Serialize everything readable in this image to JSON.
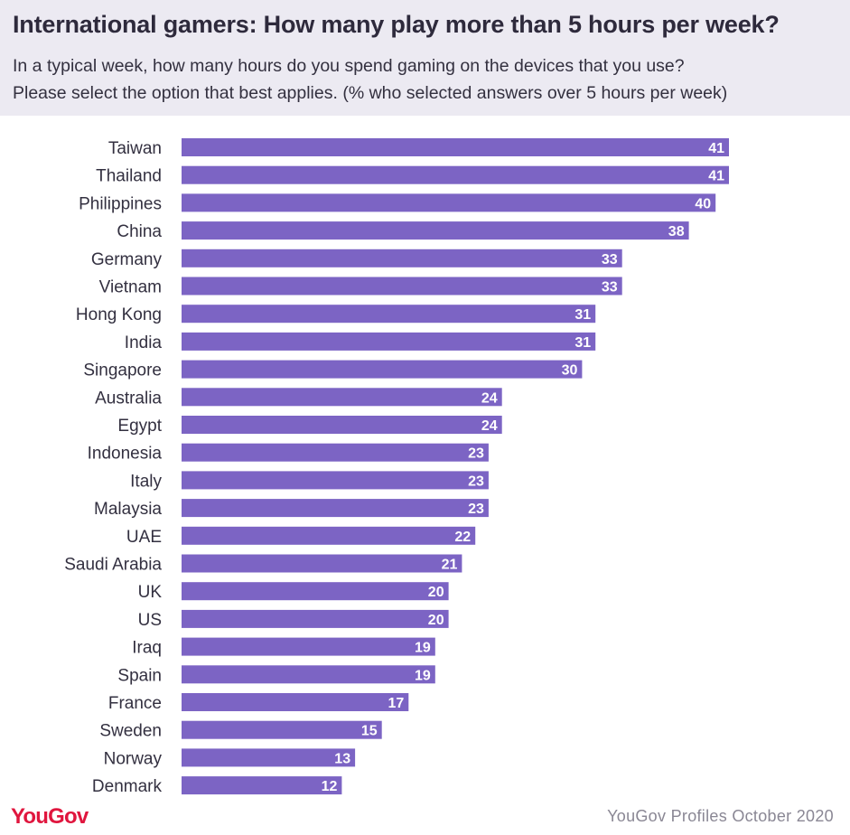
{
  "header": {
    "title": "International gamers: How many play more than 5 hours per week?",
    "subtitle_line1": "In a typical week, how many hours do you spend gaming on the devices that you use?",
    "subtitle_line2": "Please select the option that best applies. (% who selected answers over 5 hours per week)"
  },
  "footer": {
    "logo": "YouGov",
    "source": "YouGov Profiles October 2020"
  },
  "colors": {
    "bar": "#7C64C4",
    "header_background": "#ECEAF2",
    "logo": "#E0163E"
  },
  "chart_data": {
    "type": "bar",
    "orientation": "horizontal",
    "title": "International gamers: How many play more than 5 hours per week?",
    "categories": [
      "Taiwan",
      "Thailand",
      "Philippines",
      "China",
      "Germany",
      "Vietnam",
      "Hong Kong",
      "India",
      "Singapore",
      "Australia",
      "Egypt",
      "Indonesia",
      "Italy",
      "Malaysia",
      "UAE",
      "Saudi Arabia",
      "UK",
      "US",
      "Iraq",
      "Spain",
      "France",
      "Sweden",
      "Norway",
      "Denmark"
    ],
    "values": [
      41,
      41,
      40,
      38,
      33,
      33,
      31,
      31,
      30,
      24,
      24,
      23,
      23,
      23,
      22,
      21,
      20,
      20,
      19,
      19,
      17,
      15,
      13,
      12
    ],
    "xlabel": "",
    "ylabel": "",
    "data_labels": true,
    "grid": false,
    "legend": "none"
  }
}
